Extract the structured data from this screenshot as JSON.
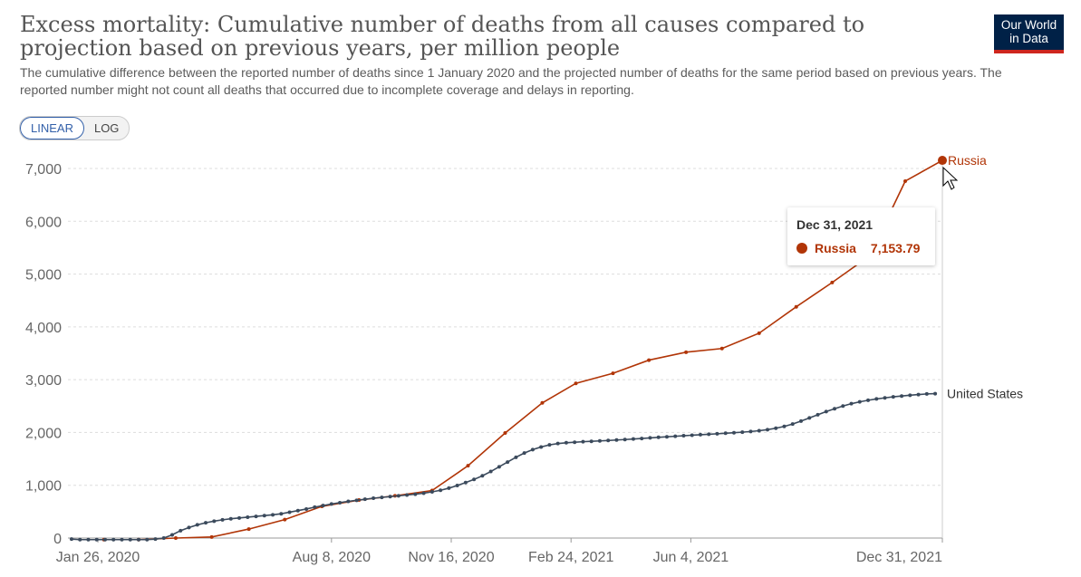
{
  "header": {
    "title": "Excess mortality: Cumulative number of deaths from all causes compared to projection based on previous years, per million people",
    "subtitle": "The cumulative difference between the reported number of deaths since 1 January 2020 and the projected number of deaths for the same period based on previous years. The reported number might not count all deaths that occurred due to incomplete coverage and delays in reporting.",
    "logo_line1": "Our World",
    "logo_line2": "in Data"
  },
  "scale_toggle": {
    "linear_label": "LINEAR",
    "log_label": "LOG",
    "selected": "LINEAR"
  },
  "tooltip": {
    "date": "Dec 31, 2021",
    "series": "Russia",
    "value": "7,153.79"
  },
  "colors": {
    "russia": "#b13507",
    "united_states": "#3b4a5c",
    "grid": "#dddddd",
    "axis_text": "#666666"
  },
  "chart_data": {
    "type": "line",
    "ylim": [
      0,
      7000
    ],
    "yticks": [
      0,
      1000,
      2000,
      3000,
      4000,
      5000,
      6000,
      7000
    ],
    "ytick_labels": [
      "0",
      "1,000",
      "2,000",
      "3,000",
      "4,000",
      "5,000",
      "6,000",
      "7,000"
    ],
    "xlim": [
      "2020-01-01",
      "2021-12-31"
    ],
    "xticks": [
      "2020-01-26",
      "2020-08-08",
      "2020-11-16",
      "2021-02-24",
      "2021-06-04",
      "2021-12-31"
    ],
    "xtick_labels": [
      "Jan 26, 2020",
      "Aug 8, 2020",
      "Nov 16, 2020",
      "Feb 24, 2021",
      "Jun 4, 2021",
      "Dec 31, 2021"
    ],
    "grid": true,
    "series": [
      {
        "name": "Russia",
        "color": "#b13507",
        "points": [
          [
            "2020-01-31",
            -30
          ],
          [
            "2020-02-29",
            -30
          ],
          [
            "2020-03-31",
            0
          ],
          [
            "2020-04-30",
            20
          ],
          [
            "2020-05-31",
            170
          ],
          [
            "2020-06-30",
            350
          ],
          [
            "2020-07-31",
            600
          ],
          [
            "2020-08-31",
            720
          ],
          [
            "2020-09-30",
            800
          ],
          [
            "2020-10-31",
            900
          ],
          [
            "2020-11-30",
            1370
          ],
          [
            "2020-12-31",
            1990
          ],
          [
            "2021-01-31",
            2560
          ],
          [
            "2021-02-28",
            2930
          ],
          [
            "2021-03-31",
            3120
          ],
          [
            "2021-04-30",
            3370
          ],
          [
            "2021-05-31",
            3520
          ],
          [
            "2021-06-30",
            3590
          ],
          [
            "2021-07-31",
            3880
          ],
          [
            "2021-08-31",
            4380
          ],
          [
            "2021-09-30",
            4840
          ],
          [
            "2021-10-31",
            5340
          ],
          [
            "2021-11-30",
            6760
          ],
          [
            "2021-12-31",
            7153.79
          ]
        ]
      },
      {
        "name": "United States",
        "color": "#3b4a5c",
        "points": [
          [
            "2020-01-04",
            -20
          ],
          [
            "2020-01-11",
            -30
          ],
          [
            "2020-01-18",
            -30
          ],
          [
            "2020-01-25",
            -30
          ],
          [
            "2020-02-01",
            -30
          ],
          [
            "2020-02-08",
            -30
          ],
          [
            "2020-02-15",
            -30
          ],
          [
            "2020-02-22",
            -30
          ],
          [
            "2020-02-29",
            -30
          ],
          [
            "2020-03-07",
            -30
          ],
          [
            "2020-03-14",
            -20
          ],
          [
            "2020-03-21",
            0
          ],
          [
            "2020-03-28",
            60
          ],
          [
            "2020-04-04",
            140
          ],
          [
            "2020-04-11",
            200
          ],
          [
            "2020-04-18",
            250
          ],
          [
            "2020-04-25",
            290
          ],
          [
            "2020-05-02",
            320
          ],
          [
            "2020-05-09",
            345
          ],
          [
            "2020-05-16",
            365
          ],
          [
            "2020-05-23",
            380
          ],
          [
            "2020-05-30",
            395
          ],
          [
            "2020-06-06",
            410
          ],
          [
            "2020-06-13",
            425
          ],
          [
            "2020-06-20",
            440
          ],
          [
            "2020-06-27",
            460
          ],
          [
            "2020-07-04",
            490
          ],
          [
            "2020-07-11",
            520
          ],
          [
            "2020-07-18",
            550
          ],
          [
            "2020-07-25",
            585
          ],
          [
            "2020-08-01",
            615
          ],
          [
            "2020-08-08",
            645
          ],
          [
            "2020-08-15",
            670
          ],
          [
            "2020-08-22",
            695
          ],
          [
            "2020-08-29",
            715
          ],
          [
            "2020-09-05",
            735
          ],
          [
            "2020-09-12",
            755
          ],
          [
            "2020-09-19",
            770
          ],
          [
            "2020-09-26",
            785
          ],
          [
            "2020-10-03",
            800
          ],
          [
            "2020-10-10",
            815
          ],
          [
            "2020-10-17",
            830
          ],
          [
            "2020-10-24",
            850
          ],
          [
            "2020-10-31",
            875
          ],
          [
            "2020-11-07",
            905
          ],
          [
            "2020-11-14",
            945
          ],
          [
            "2020-11-21",
            995
          ],
          [
            "2020-11-28",
            1050
          ],
          [
            "2020-12-05",
            1110
          ],
          [
            "2020-12-12",
            1180
          ],
          [
            "2020-12-19",
            1260
          ],
          [
            "2020-12-26",
            1350
          ],
          [
            "2021-01-02",
            1440
          ],
          [
            "2021-01-09",
            1530
          ],
          [
            "2021-01-16",
            1610
          ],
          [
            "2021-01-23",
            1675
          ],
          [
            "2021-01-30",
            1725
          ],
          [
            "2021-02-06",
            1765
          ],
          [
            "2021-02-13",
            1790
          ],
          [
            "2021-02-20",
            1805
          ],
          [
            "2021-02-27",
            1815
          ],
          [
            "2021-03-06",
            1825
          ],
          [
            "2021-03-13",
            1832
          ],
          [
            "2021-03-20",
            1840
          ],
          [
            "2021-03-27",
            1848
          ],
          [
            "2021-04-03",
            1857
          ],
          [
            "2021-04-10",
            1866
          ],
          [
            "2021-04-17",
            1876
          ],
          [
            "2021-04-24",
            1886
          ],
          [
            "2021-05-01",
            1897
          ],
          [
            "2021-05-08",
            1908
          ],
          [
            "2021-05-15",
            1918
          ],
          [
            "2021-05-22",
            1928
          ],
          [
            "2021-05-29",
            1938
          ],
          [
            "2021-06-05",
            1948
          ],
          [
            "2021-06-12",
            1957
          ],
          [
            "2021-06-19",
            1966
          ],
          [
            "2021-06-26",
            1975
          ],
          [
            "2021-07-03",
            1985
          ],
          [
            "2021-07-10",
            1995
          ],
          [
            "2021-07-17",
            2005
          ],
          [
            "2021-07-24",
            2018
          ],
          [
            "2021-07-31",
            2033
          ],
          [
            "2021-08-07",
            2053
          ],
          [
            "2021-08-14",
            2080
          ],
          [
            "2021-08-21",
            2115
          ],
          [
            "2021-08-28",
            2160
          ],
          [
            "2021-09-04",
            2215
          ],
          [
            "2021-09-11",
            2275
          ],
          [
            "2021-09-18",
            2335
          ],
          [
            "2021-09-25",
            2395
          ],
          [
            "2021-10-02",
            2450
          ],
          [
            "2021-10-09",
            2500
          ],
          [
            "2021-10-16",
            2545
          ],
          [
            "2021-10-23",
            2580
          ],
          [
            "2021-10-30",
            2610
          ],
          [
            "2021-11-06",
            2635
          ],
          [
            "2021-11-13",
            2655
          ],
          [
            "2021-11-20",
            2675
          ],
          [
            "2021-11-27",
            2690
          ],
          [
            "2021-12-04",
            2705
          ],
          [
            "2021-12-11",
            2718
          ],
          [
            "2021-12-18",
            2730
          ],
          [
            "2021-12-25",
            2735
          ]
        ]
      }
    ]
  }
}
